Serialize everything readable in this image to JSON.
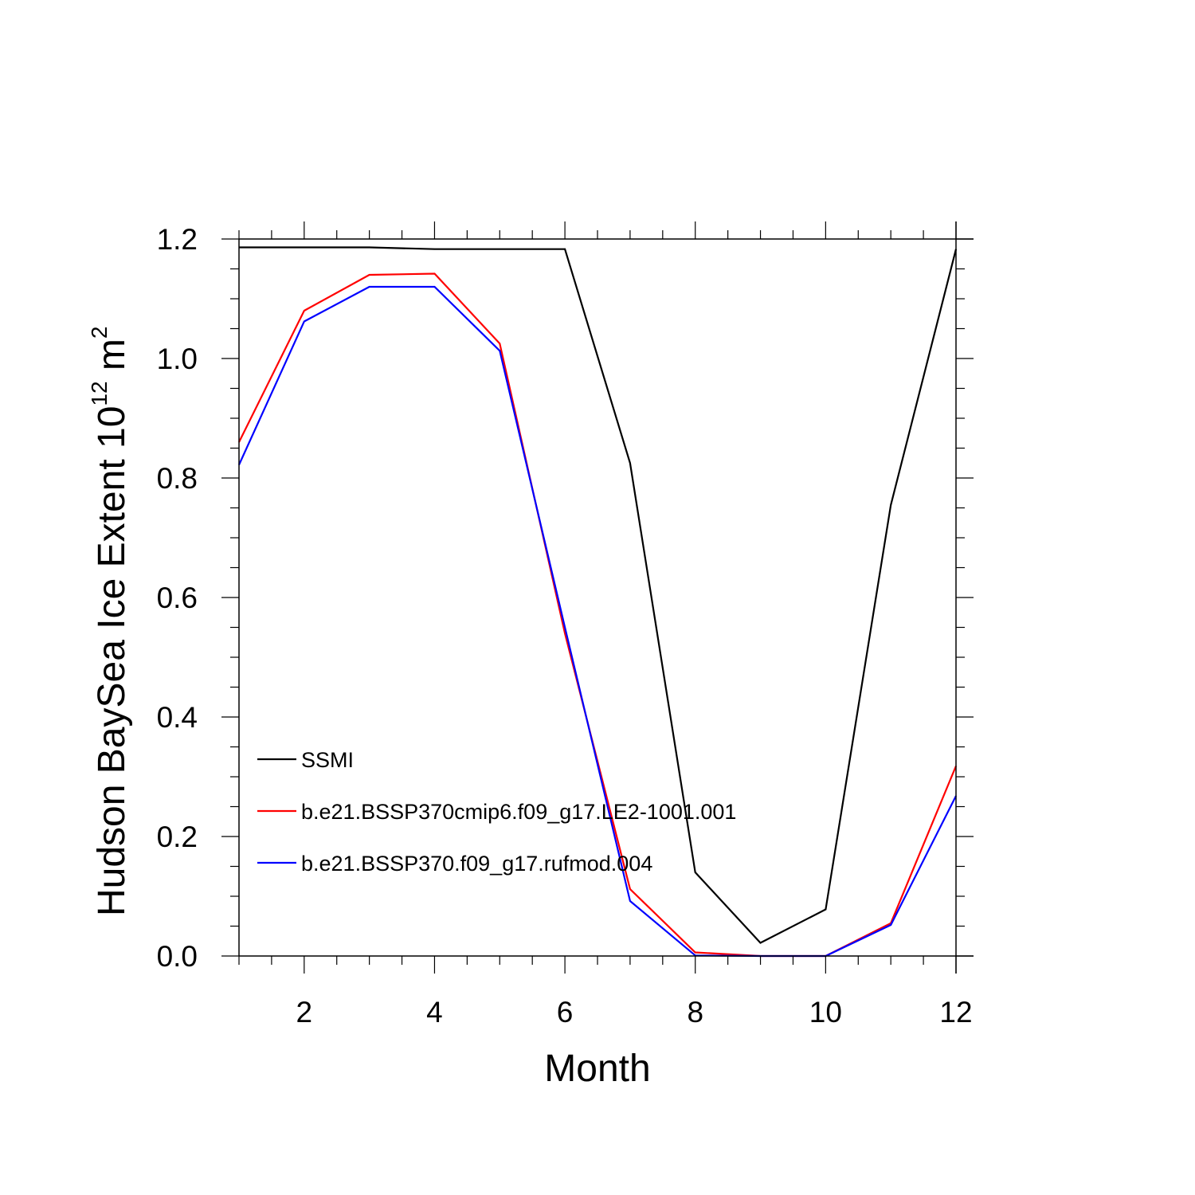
{
  "chart_data": {
    "type": "line",
    "title": "",
    "xlabel": "Month",
    "ylabel_main": "Hudson BaySea Ice Extent 10",
    "ylabel_sup1": "12",
    "ylabel_unit": " m",
    "ylabel_sup2": "2",
    "xlim": [
      1,
      12
    ],
    "ylim": [
      0,
      1.2
    ],
    "x_ticks": [
      2,
      4,
      6,
      8,
      10,
      12
    ],
    "x_tick_labels": [
      "2",
      "4",
      "6",
      "8",
      "10",
      "12"
    ],
    "y_ticks": [
      0,
      0.2,
      0.4,
      0.6,
      0.8,
      1.0,
      1.2
    ],
    "y_tick_labels": [
      "0.0",
      "0.2",
      "0.4",
      "0.6",
      "0.8",
      "1.0",
      "1.2"
    ],
    "grid": false,
    "legend_position": "lower-left",
    "x": [
      1,
      2,
      3,
      4,
      5,
      6,
      7,
      8,
      9,
      10,
      11,
      12
    ],
    "series": [
      {
        "name": "SSMI",
        "color": "#000000",
        "values": [
          1.186,
          1.186,
          1.186,
          1.183,
          1.183,
          1.183,
          0.825,
          0.14,
          0.022,
          0.078,
          0.755,
          1.183
        ]
      },
      {
        "name": "b.e21.BSSP370cmip6.f09_g17.LE2-1001.001",
        "color": "#ff0000",
        "values": [
          0.86,
          1.08,
          1.14,
          1.142,
          1.025,
          0.54,
          0.112,
          0.006,
          0.0,
          0.0,
          0.055,
          0.318
        ]
      },
      {
        "name": "b.e21.BSSP370.f09_g17.rufmod.004",
        "color": "#0000ff",
        "values": [
          0.822,
          1.062,
          1.12,
          1.12,
          1.013,
          0.55,
          0.092,
          0.001,
          0.0,
          0.0,
          0.052,
          0.268
        ]
      }
    ]
  }
}
